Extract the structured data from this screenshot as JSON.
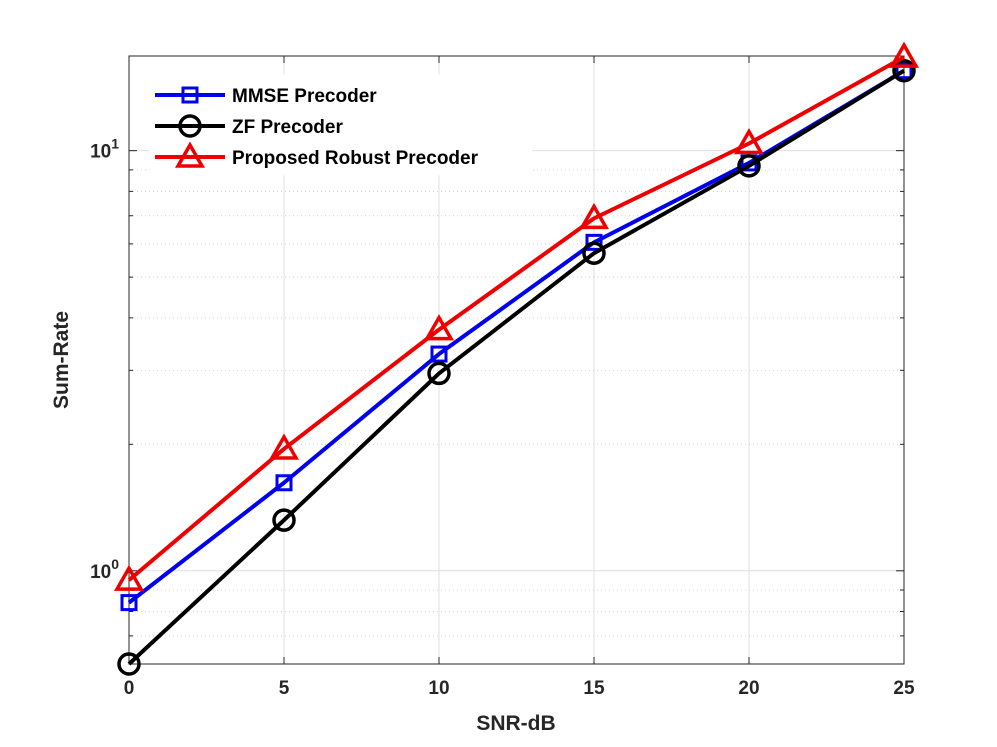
{
  "chart_data": {
    "type": "line",
    "x": [
      0,
      5,
      10,
      15,
      20,
      25
    ],
    "xlabel": "SNR-dB",
    "ylabel": "Sum-Rate",
    "xlim": [
      0,
      25
    ],
    "ylim": [
      0.6,
      16.8
    ],
    "yscale": "log",
    "grid": true,
    "legend_position": "top-left",
    "x_ticks": [
      "0",
      "5",
      "10",
      "15",
      "20",
      "25"
    ],
    "y_ticks": [
      {
        "value": 1,
        "base": "10",
        "exponent": "0"
      },
      {
        "value": 10,
        "base": "10",
        "exponent": "1"
      }
    ],
    "series": [
      {
        "name": "MMSE Precoder",
        "color": "#0000ee",
        "marker": "square",
        "values": [
          0.84,
          1.62,
          3.28,
          6.05,
          9.35,
          15.5
        ]
      },
      {
        "name": "ZF Precoder",
        "color": "#000000",
        "marker": "circle",
        "values": [
          0.6,
          1.32,
          2.95,
          5.7,
          9.2,
          15.5
        ]
      },
      {
        "name": "Proposed Robust Precoder",
        "color": "#ee0000",
        "marker": "triangle",
        "values": [
          0.95,
          1.95,
          3.75,
          6.9,
          10.4,
          16.7
        ]
      }
    ]
  }
}
